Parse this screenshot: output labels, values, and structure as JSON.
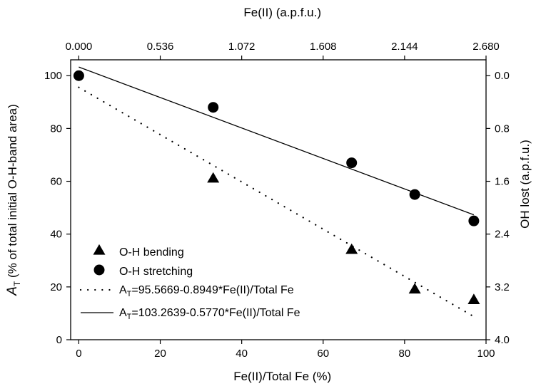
{
  "chart_data": {
    "type": "scatter",
    "xlabel": "Fe(II)/Total Fe (%)",
    "ylabel_prefix": "A",
    "ylabel_sub": "T",
    "ylabel_rest": " (% of total initial O-H-band area)",
    "top_label": "Fe(II) (a.p.f.u.)",
    "right_label": "OH lost (a.p.f.u.)",
    "xlim": [
      -2,
      100
    ],
    "ylim": [
      0,
      106
    ],
    "x_ticks": [
      "0",
      "20",
      "40",
      "60",
      "80",
      "100"
    ],
    "y_ticks": [
      "0",
      "20",
      "40",
      "60",
      "80",
      "100"
    ],
    "top_ticks": [
      "0.000",
      "0.536",
      "1.072",
      "1.608",
      "2.144",
      "2.680"
    ],
    "right_ticks": [
      "0.0",
      "0.8",
      "1.6",
      "2.4",
      "3.2",
      "4.0"
    ],
    "grid": false,
    "legend_position": "bottom-left",
    "series": [
      {
        "name": "O-H bending",
        "marker": "triangle",
        "x": [
          33,
          67,
          82.5,
          97
        ],
        "y": [
          61,
          34,
          19,
          15
        ]
      },
      {
        "name": "O-H stretching",
        "marker": "circle",
        "x": [
          0,
          33,
          67,
          82.5,
          97
        ],
        "y": [
          100,
          88,
          67,
          55,
          45
        ]
      }
    ],
    "fits": [
      {
        "label_prefix": "A",
        "label_sub": "T",
        "label_rest": "=95.5669-0.8949*Fe(II)/Total Fe",
        "style": "dotted",
        "intercept": 95.5669,
        "slope": -0.8949,
        "x_range": [
          0,
          97
        ]
      },
      {
        "label_prefix": "A",
        "label_sub": "T",
        "label_rest": "=103.2639-0.5770*Fe(II)/Total Fe",
        "style": "solid",
        "intercept": 103.2639,
        "slope": -0.577,
        "x_range": [
          0,
          97
        ]
      }
    ]
  }
}
